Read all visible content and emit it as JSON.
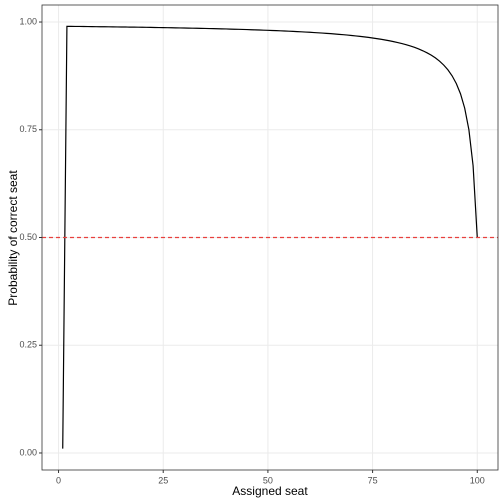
{
  "chart_data": {
    "type": "line",
    "x_label": "Assigned seat",
    "y_label": "Probability of correct seat",
    "x": [
      1,
      2,
      3,
      4,
      5,
      6,
      7,
      8,
      9,
      10,
      11,
      12,
      13,
      14,
      15,
      16,
      17,
      18,
      19,
      20,
      21,
      22,
      23,
      24,
      25,
      26,
      27,
      28,
      29,
      30,
      31,
      32,
      33,
      34,
      35,
      36,
      37,
      38,
      39,
      40,
      41,
      42,
      43,
      44,
      45,
      46,
      47,
      48,
      49,
      50,
      51,
      52,
      53,
      54,
      55,
      56,
      57,
      58,
      59,
      60,
      61,
      62,
      63,
      64,
      65,
      66,
      67,
      68,
      69,
      70,
      71,
      72,
      73,
      74,
      75,
      76,
      77,
      78,
      79,
      80,
      81,
      82,
      83,
      84,
      85,
      86,
      87,
      88,
      89,
      90,
      91,
      92,
      93,
      94,
      95,
      96,
      97,
      98,
      99,
      100
    ],
    "series": [
      {
        "color": "#000000",
        "values": [
          0.01,
          0.99,
          0.9899,
          0.9898,
          0.9897,
          0.9896,
          0.9895,
          0.9894,
          0.9892,
          0.9891,
          0.989,
          0.9889,
          0.9888,
          0.9886,
          0.9885,
          0.9884,
          0.9882,
          0.9881,
          0.988,
          0.9878,
          0.9877,
          0.9875,
          0.9873,
          0.9872,
          0.987,
          0.9868,
          0.9867,
          0.9865,
          0.9863,
          0.9861,
          0.9859,
          0.9857,
          0.9855,
          0.9853,
          0.9851,
          0.9848,
          0.9846,
          0.9844,
          0.9841,
          0.9839,
          0.9836,
          0.9833,
          0.9831,
          0.9828,
          0.9825,
          0.9821,
          0.9818,
          0.9815,
          0.9811,
          0.9808,
          0.9804,
          0.98,
          0.9796,
          0.9792,
          0.9787,
          0.9783,
          0.9778,
          0.9773,
          0.9767,
          0.9762,
          0.9756,
          0.975,
          0.9744,
          0.9737,
          0.973,
          0.9722,
          0.9714,
          0.9706,
          0.9697,
          0.9688,
          0.9677,
          0.9667,
          0.9655,
          0.9643,
          0.963,
          0.9615,
          0.96,
          0.9583,
          0.9565,
          0.9545,
          0.9524,
          0.95,
          0.9474,
          0.9444,
          0.9412,
          0.9375,
          0.9333,
          0.9286,
          0.9231,
          0.9167,
          0.9091,
          0.9,
          0.8889,
          0.875,
          0.8571,
          0.8333,
          0.8,
          0.75,
          0.6667,
          0.5
        ]
      }
    ],
    "hline": {
      "value": 0.5,
      "color": "#e8413e"
    },
    "xlim": [
      -3.95,
      104.95
    ],
    "ylim": [
      -0.0395,
      1.0395
    ],
    "xticks": [
      0,
      25,
      50,
      75,
      100
    ],
    "yticks": [
      {
        "value": 0,
        "label": "0.00"
      },
      {
        "value": 0.25,
        "label": "0.25"
      },
      {
        "value": 0.5,
        "label": "0.50"
      },
      {
        "value": 0.75,
        "label": "0.75"
      },
      {
        "value": 1,
        "label": "1.00"
      }
    ],
    "grid": true
  }
}
